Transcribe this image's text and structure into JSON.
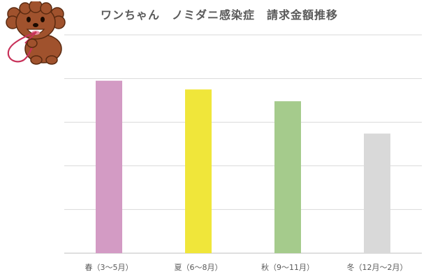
{
  "chart_data": {
    "type": "bar",
    "title": "ワンちゃん　ノミダニ感染症　請求金額推移",
    "categories": [
      "春（3～5月）",
      "夏（6～8月）",
      "秋（9～11月）",
      "冬（12月～2月）"
    ],
    "values": [
      3.95,
      3.75,
      3.48,
      2.74
    ],
    "colors": [
      "#d39bc4",
      "#f0e63a",
      "#a5cb8c",
      "#d9d9d9"
    ],
    "ylim": [
      0,
      5
    ],
    "ygrid_step": 1,
    "grid": true,
    "y_tick_labels_shown": false,
    "legend": "none"
  },
  "decoration": {
    "mascot_icon": "brown-poodle-with-leash-icon"
  }
}
